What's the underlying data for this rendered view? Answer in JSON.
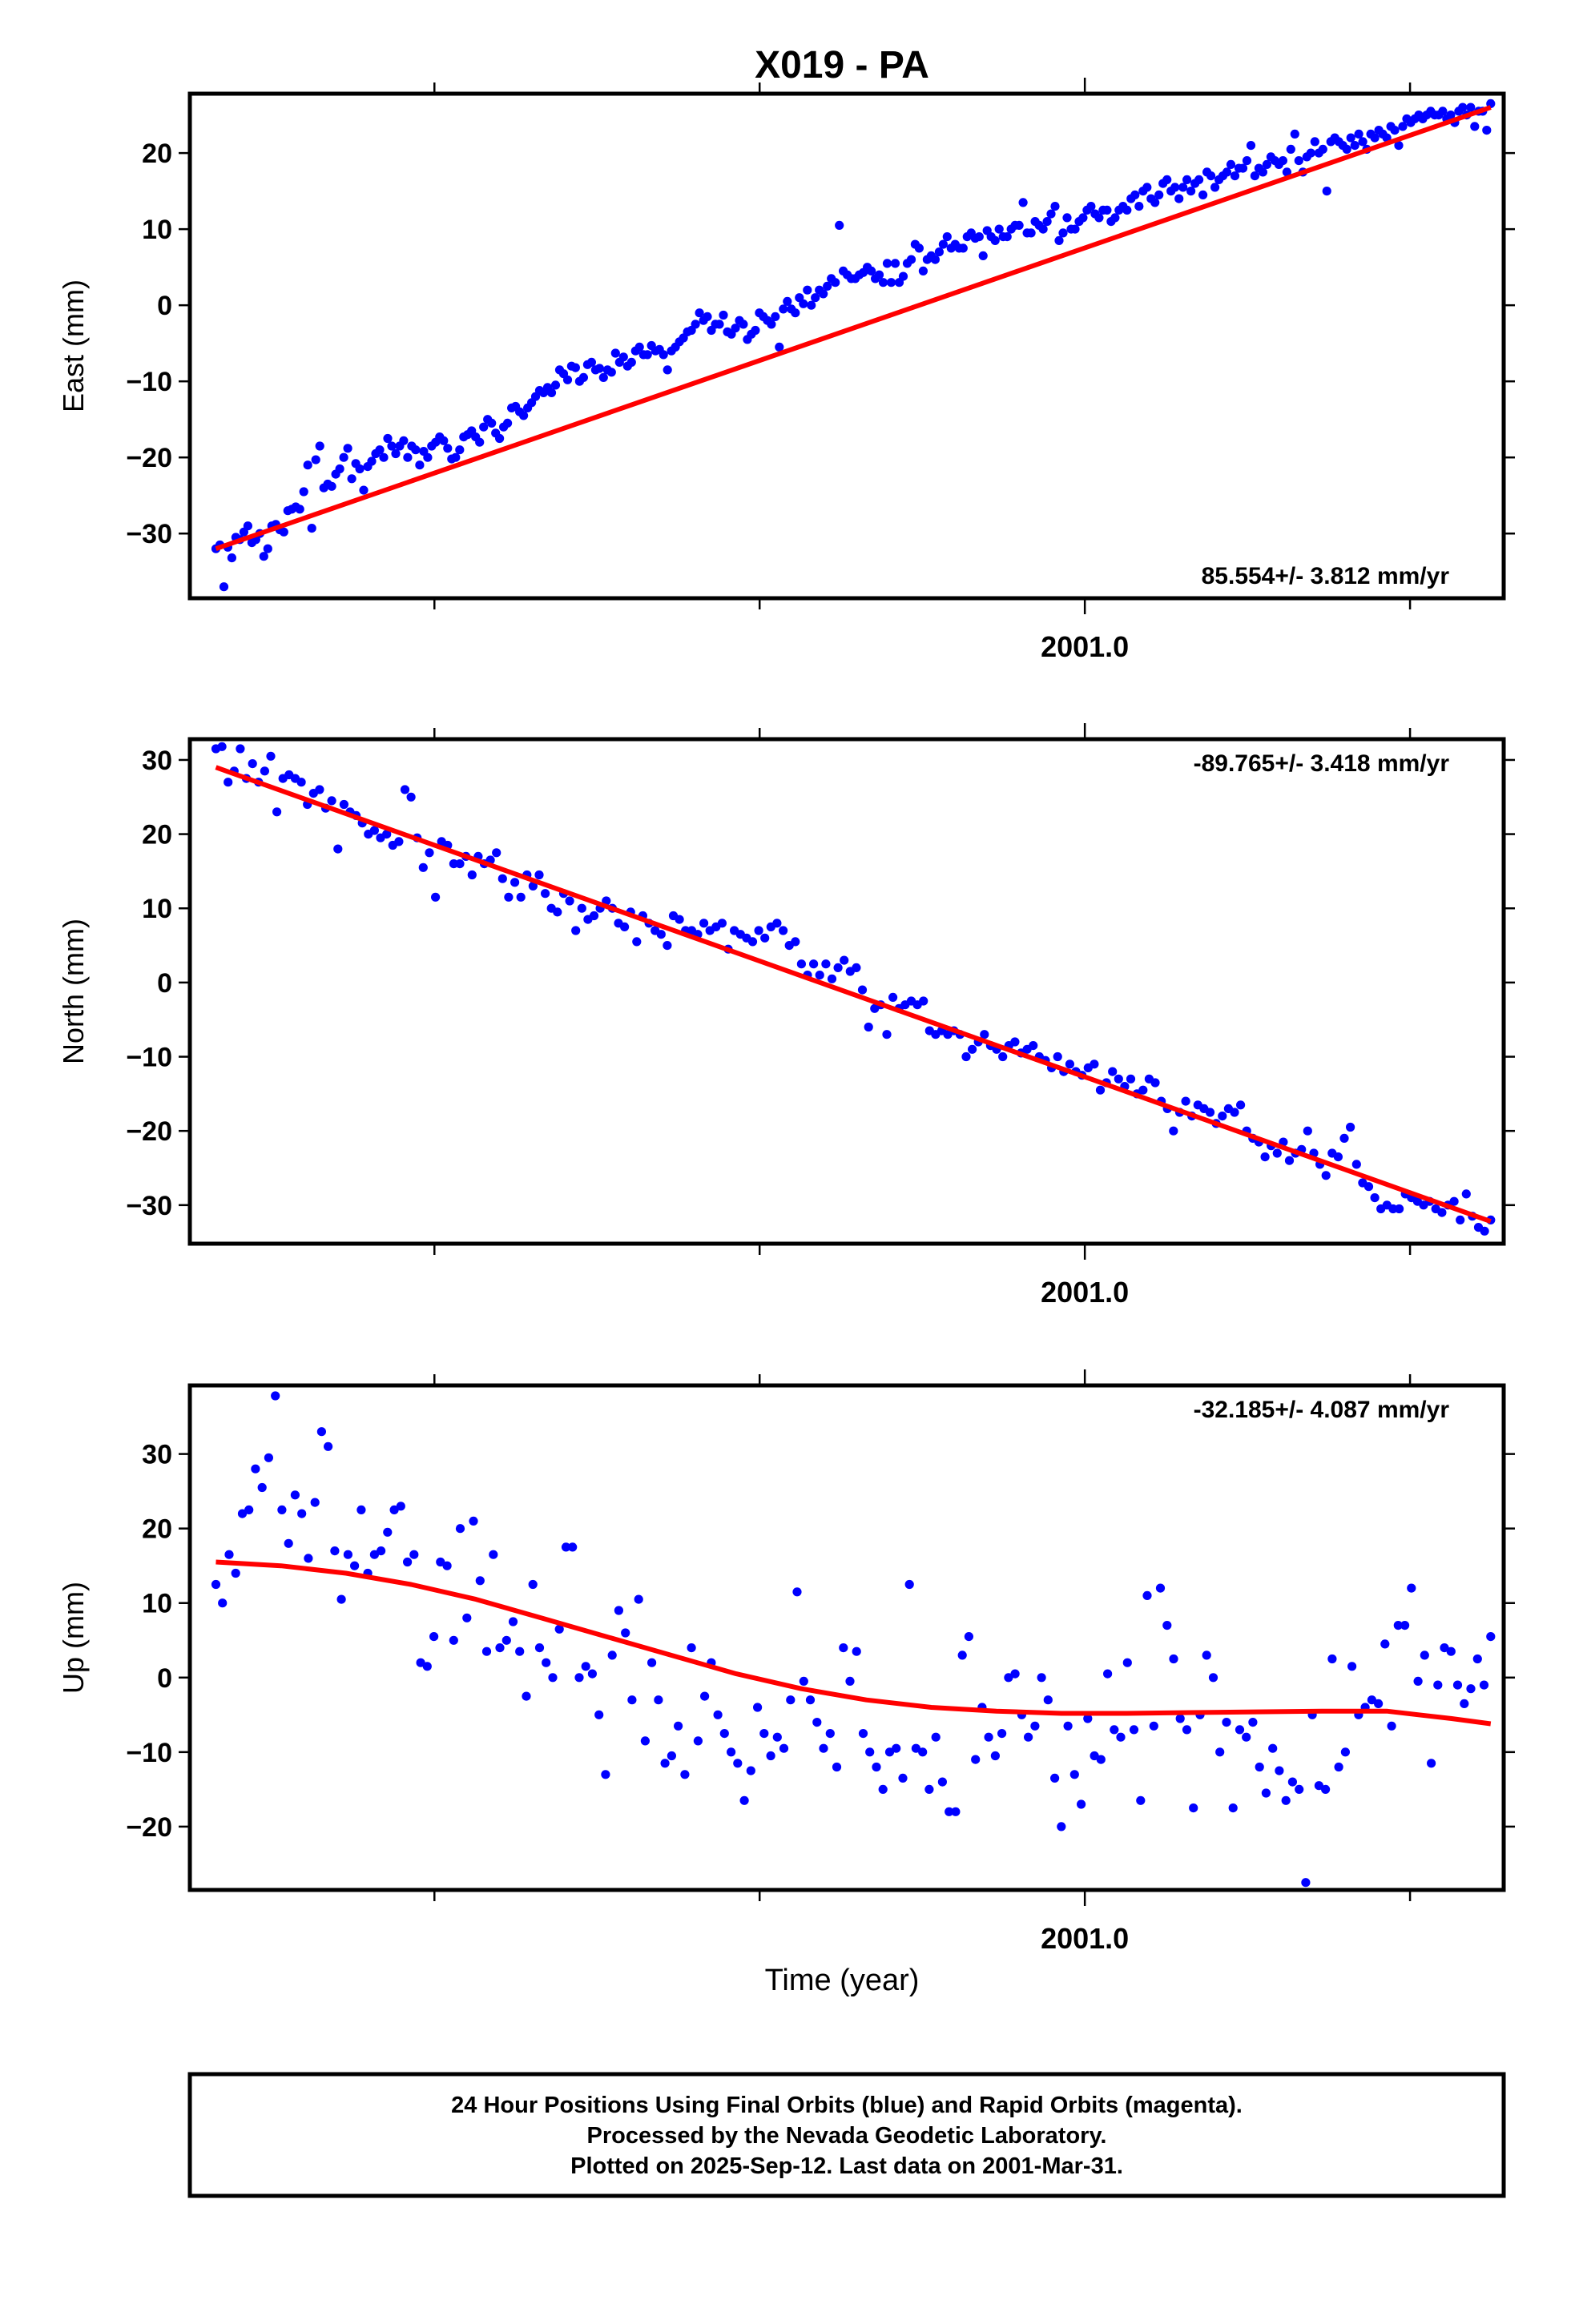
{
  "title": "X019 - PA",
  "xlabel": "Time (year)",
  "colors": {
    "points": "#0000ff",
    "fit": "#ff0000",
    "axis": "#000000"
  },
  "footer": {
    "line1": "24 Hour Positions Using Final Orbits (blue) and Rapid Orbits (magenta).",
    "line2": "Processed by the Nevada Geodetic Laboratory.",
    "line3": "Plotted on 2025-Sep-12. Last data on 2001-Mar-31."
  },
  "chart_data": [
    {
      "type": "scatter",
      "ylabel": "East (mm)",
      "x_tick_label": "2001.0",
      "y_ticks": [
        -30,
        -20,
        -10,
        0,
        10,
        20
      ],
      "y_tick_labels": [
        "−30",
        "−20",
        "−10",
        "0",
        "10",
        "20"
      ],
      "ylim": [
        -38.5,
        27.8
      ],
      "xlim": [
        2000.27,
        2001.28
      ],
      "rate_label": "85.554+/- 3.812 mm/yr",
      "fit": {
        "type": "line",
        "x0": 2000.29,
        "y0": -32.0,
        "x1": 2001.27,
        "y1": 26.0
      },
      "x_start": 2000.29,
      "x_end": 2001.27,
      "values": [
        -32,
        -31.5,
        -37,
        -31.8,
        -33.2,
        -30.5,
        -30.8,
        -29.8,
        -29,
        -31.2,
        -30.8,
        -30,
        -33,
        -32,
        -29,
        -28.8,
        -29.5,
        -29.8,
        -27,
        -26.8,
        -26.5,
        -26.8,
        -24.5,
        -21,
        -29.3,
        -20.3,
        -18.5,
        -24,
        -23.5,
        -23.8,
        -22.2,
        -21.5,
        -20,
        -18.8,
        -22.8,
        -20.8,
        -21.5,
        -24.3,
        -21.2,
        -20.5,
        -19.5,
        -19,
        -20,
        -17.5,
        -18.5,
        -19.5,
        -18.5,
        -17.8,
        -20,
        -18.5,
        -19,
        -21,
        -19.2,
        -20,
        -18.5,
        -18,
        -17.3,
        -17.8,
        -18.8,
        -20.2,
        -20,
        -19,
        -17.3,
        -17,
        -16.5,
        -17.3,
        -18,
        -16,
        -15,
        -15.5,
        -16.8,
        -17.5,
        -16,
        -15.5,
        -13.5,
        -13.3,
        -14,
        -14.5,
        -13.5,
        -12.8,
        -12,
        -11.2,
        -11.5,
        -10.8,
        -11.5,
        -10.5,
        -8.5,
        -9,
        -9.8,
        -8,
        -8.2,
        -10,
        -9.5,
        -7.8,
        -7.5,
        -8.5,
        -8.3,
        -9.5,
        -8.5,
        -8.8,
        -6.3,
        -7.5,
        -6.8,
        -8,
        -7.5,
        -6,
        -5.5,
        -6.5,
        -6.5,
        -5.3,
        -6,
        -5.8,
        -6.5,
        -8.5,
        -6,
        -5.5,
        -4.8,
        -4.3,
        -3.5,
        -3.3,
        -2.5,
        -1,
        -2,
        -1.5,
        -3.3,
        -2.5,
        -2.5,
        -1.3,
        -3.5,
        -3.8,
        -3,
        -2,
        -2.5,
        -4.5,
        -3.8,
        -3.3,
        -1,
        -1.5,
        -2,
        -2.5,
        -1.5,
        -5.5,
        -0.5,
        0.5,
        -0.5,
        -1,
        1,
        0.2,
        2,
        0,
        1,
        2,
        1.5,
        2.5,
        3.5,
        3,
        10.5,
        4.5,
        4,
        3.5,
        3.5,
        4,
        4.3,
        5,
        4.5,
        3.5,
        4,
        3,
        5.5,
        3,
        5.5,
        3,
        3.8,
        5.5,
        6,
        8,
        7.5,
        4.5,
        6,
        6.5,
        6,
        7,
        8,
        9,
        7.5,
        8,
        7.5,
        7.5,
        9,
        9.5,
        8.8,
        9,
        6.5,
        9.8,
        9,
        8.5,
        10,
        9,
        9,
        10,
        10.5,
        10.5,
        13.5,
        9.5,
        9.5,
        11,
        10.5,
        10,
        11,
        12,
        13,
        8.5,
        9.5,
        11.5,
        10,
        10,
        11,
        11.5,
        12.5,
        13,
        12,
        11.5,
        12.5,
        12.5,
        11,
        11.5,
        12.5,
        13,
        12.5,
        14,
        14.5,
        13,
        15,
        15.5,
        14,
        13.5,
        14.5,
        16,
        16.5,
        15,
        15.5,
        14,
        15.5,
        16.5,
        15,
        16,
        16.5,
        14.5,
        17.5,
        17,
        15.5,
        16.5,
        17,
        17.5,
        18.5,
        17,
        18,
        18,
        19,
        21,
        17,
        18,
        17.5,
        18.5,
        19.5,
        19,
        18.5,
        19,
        17.5,
        20.5,
        22.5,
        19,
        17.5,
        19.5,
        20,
        21.5,
        20,
        20.5,
        15,
        21.5,
        22,
        21.5,
        21,
        20.5,
        22,
        21,
        22.5,
        21.5,
        20.5,
        22.5,
        22,
        23,
        22.5,
        22,
        23.5,
        23,
        21,
        23.5,
        24.5,
        24,
        24.5,
        25,
        24.5,
        25,
        25.5,
        25,
        25,
        25.5,
        24.5,
        25,
        24,
        25.5,
        26,
        25,
        26,
        23.5,
        25.5,
        25.5,
        23,
        26.5
      ]
    },
    {
      "type": "scatter",
      "ylabel": "North (mm)",
      "x_tick_label": "2001.0",
      "y_ticks": [
        -30,
        -20,
        -10,
        0,
        10,
        20,
        30
      ],
      "y_tick_labels": [
        "−30",
        "−20",
        "−10",
        "0",
        "10",
        "20",
        "30"
      ],
      "ylim": [
        -35.2,
        32.8
      ],
      "xlim": [
        2000.27,
        2001.28
      ],
      "rate_label": "-89.765+/- 3.418 mm/yr",
      "fit": {
        "type": "line",
        "x0": 2000.29,
        "y0": 29.0,
        "x1": 2001.27,
        "y1": -32.2
      },
      "x_start": 2000.29,
      "x_end": 2001.27,
      "values": [
        31.5,
        31.8,
        27,
        28.5,
        31.5,
        27.5,
        29.5,
        27,
        28.5,
        30.5,
        23,
        27.5,
        28,
        27.5,
        27,
        24,
        25.5,
        26,
        23.5,
        24.5,
        18,
        24,
        23,
        22.5,
        21.5,
        20,
        20.5,
        19.5,
        20,
        18.5,
        19,
        26,
        25,
        19.5,
        15.5,
        17.5,
        11.5,
        19,
        18.5,
        16,
        16,
        17,
        14.5,
        17,
        16,
        16.5,
        17.5,
        14,
        11.5,
        13.5,
        11.5,
        14.5,
        13,
        14.5,
        12,
        10,
        9.5,
        12,
        11,
        7,
        10,
        8.5,
        9,
        10,
        11,
        10,
        8,
        7.5,
        9.5,
        5.5,
        9,
        8,
        7,
        6.5,
        5,
        9,
        8.5,
        7,
        7,
        6.5,
        8,
        7,
        7.5,
        8,
        4.5,
        7,
        6.5,
        6,
        5.5,
        7,
        6,
        7.5,
        8,
        7,
        5,
        5.5,
        2.5,
        1,
        2.5,
        1,
        2.5,
        0.5,
        2,
        3,
        1.5,
        2,
        -1,
        -6,
        -3.5,
        -3,
        -7,
        -2,
        -3.5,
        -3,
        -2.5,
        -3,
        -2.5,
        -6.5,
        -7,
        -6.5,
        -7,
        -6.5,
        -7,
        -10,
        -9,
        -8,
        -7,
        -8.5,
        -9,
        -10,
        -8.5,
        -8,
        -9.5,
        -9,
        -8.5,
        -10,
        -10.5,
        -11.5,
        -10,
        -12,
        -11,
        -12,
        -12.5,
        -11.5,
        -11,
        -14.5,
        -13.5,
        -12,
        -13,
        -14,
        -13,
        -15,
        -14.5,
        -13,
        -13.5,
        -16,
        -17,
        -20,
        -17.5,
        -16,
        -18,
        -16.5,
        -17,
        -17.5,
        -19,
        -18,
        -17,
        -17.5,
        -16.5,
        -20,
        -21,
        -21.5,
        -23.5,
        -22,
        -23,
        -21.5,
        -24,
        -23,
        -22.5,
        -20,
        -23,
        -24.5,
        -26,
        -23,
        -23.5,
        -21,
        -19.5,
        -24.5,
        -27,
        -27.5,
        -29,
        -30.5,
        -30,
        -30.5,
        -30.5,
        -28.5,
        -29,
        -29.5,
        -30,
        -29.5,
        -30.5,
        -31,
        -30,
        -29.5,
        -32,
        -28.5,
        -31.5,
        -33,
        -33.5,
        -32
      ]
    },
    {
      "type": "scatter",
      "ylabel": "Up (mm)",
      "x_tick_label": "2001.0",
      "y_ticks": [
        -20,
        -10,
        0,
        10,
        20,
        30
      ],
      "y_tick_labels": [
        "−20",
        "−10",
        "0",
        "10",
        "20",
        "30"
      ],
      "ylim": [
        -28.5,
        39.2
      ],
      "xlim": [
        2000.27,
        2001.28
      ],
      "rate_label": "-32.185+/- 4.087 mm/yr",
      "fit": {
        "type": "curve",
        "x": [
          2000.29,
          2000.34,
          2000.39,
          2000.44,
          2000.49,
          2000.54,
          2000.59,
          2000.64,
          2000.69,
          2000.74,
          2000.79,
          2000.84,
          2000.89,
          2000.94,
          2000.99,
          2001.04,
          2001.09,
          2001.14,
          2001.19,
          2001.24,
          2001.27
        ],
        "y": [
          15.5,
          15,
          14,
          12.5,
          10.5,
          8,
          5.5,
          3,
          0.5,
          -1.5,
          -3,
          -4,
          -4.5,
          -4.8,
          -4.8,
          -4.7,
          -4.6,
          -4.5,
          -4.5,
          -5.5,
          -6.2
        ]
      },
      "x_start": 2000.29,
      "x_end": 2001.27,
      "values": [
        12.5,
        10,
        16.5,
        14,
        22,
        22.5,
        28,
        25.5,
        29.5,
        37.8,
        22.5,
        18,
        24.5,
        22,
        16,
        23.5,
        33,
        31,
        17,
        10.5,
        16.5,
        15,
        22.5,
        14,
        16.5,
        17,
        19.5,
        22.5,
        23,
        15.5,
        16.5,
        2,
        1.5,
        5.5,
        15.5,
        15,
        5,
        20,
        8,
        21,
        13,
        3.5,
        16.5,
        4,
        5,
        7.5,
        3.5,
        -2.5,
        12.5,
        4,
        2,
        0,
        6.5,
        17.5,
        17.5,
        0,
        1.5,
        0.5,
        -5,
        -13,
        3,
        9,
        6,
        -3,
        10.5,
        -8.5,
        2,
        -3,
        -11.5,
        -10.5,
        -6.5,
        -13,
        4,
        -8.5,
        -2.5,
        2,
        -5,
        -7.5,
        -10,
        -11.5,
        -16.5,
        -12.5,
        -4,
        -7.5,
        -10.5,
        -8,
        -9.5,
        -3,
        11.5,
        -0.5,
        -3,
        -6,
        -9.5,
        -7.5,
        -12,
        4,
        -0.5,
        3.5,
        -7.5,
        -10,
        -12,
        -15,
        -10,
        -9.5,
        -13.5,
        12.5,
        -9.5,
        -10,
        -15,
        -8,
        -14,
        -18,
        -18,
        3,
        5.5,
        -11,
        -4,
        -8,
        -10.5,
        -7.5,
        0,
        0.5,
        -5,
        -8,
        -6.5,
        0,
        -3,
        -13.5,
        -20,
        -6.5,
        -13,
        -17,
        -5.5,
        -10.5,
        -11,
        0.5,
        -7,
        -8,
        2,
        -7,
        -16.5,
        11,
        -6.5,
        12,
        7,
        2.5,
        -5.5,
        -7,
        -17.5,
        -5,
        3,
        0,
        -10,
        -6,
        -17.5,
        -7,
        -8,
        -6,
        -12,
        -15.5,
        -9.5,
        -12.5,
        -16.5,
        -14,
        -15,
        -27.5,
        -5,
        -14.5,
        -15,
        2.5,
        -12,
        -10,
        1.5,
        -5,
        -4,
        -3,
        -3.5,
        4.5,
        -6.5,
        7,
        7,
        12,
        -0.5,
        3,
        -11.5,
        -1,
        4,
        3.5,
        -1,
        -3.5,
        -1.5,
        2.5,
        -1,
        5.5
      ]
    }
  ]
}
